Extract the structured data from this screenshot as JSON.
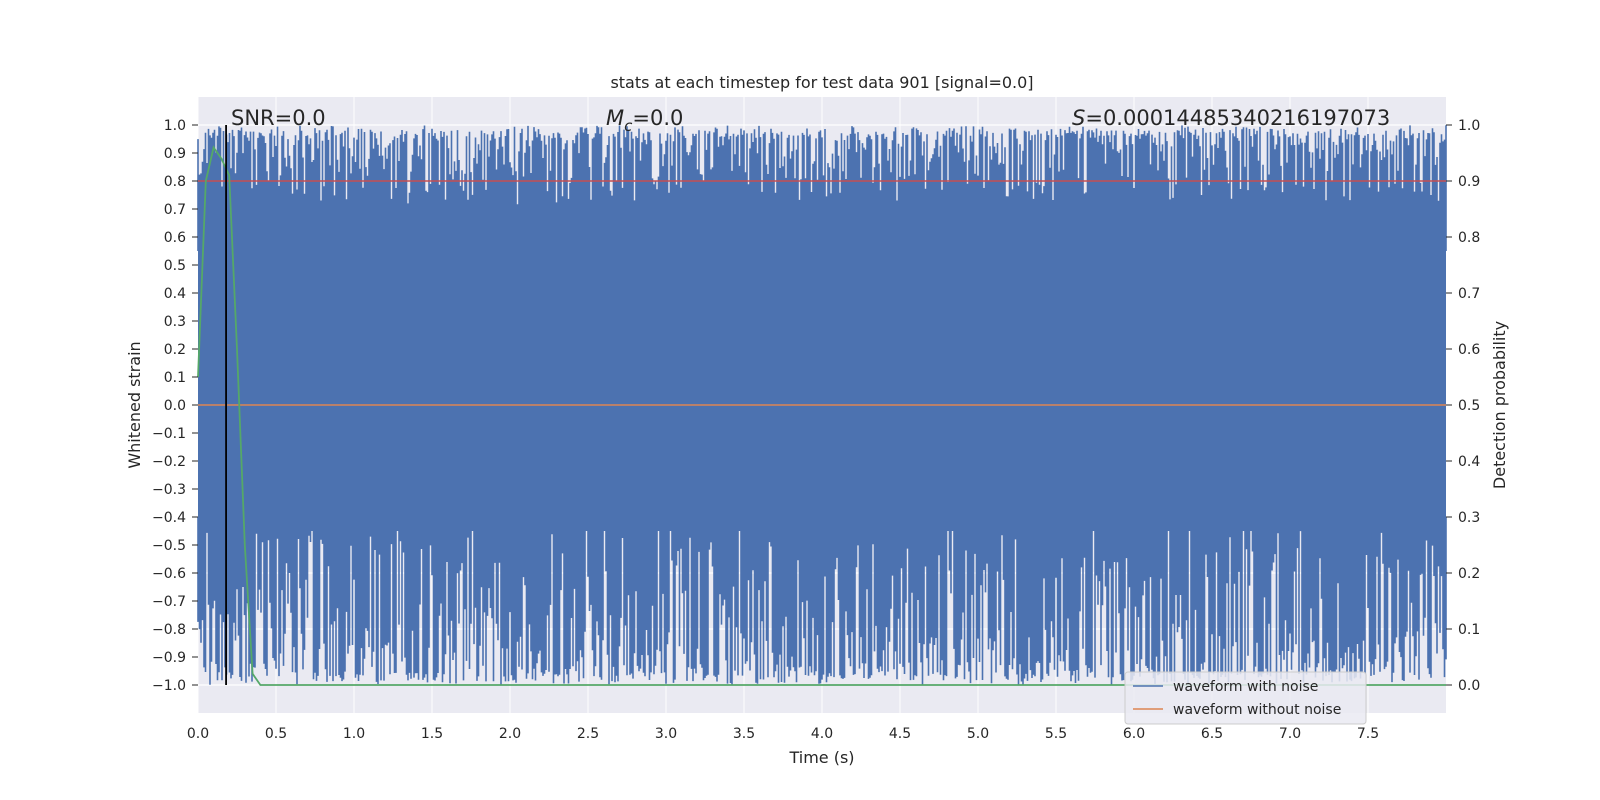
{
  "chart_data": {
    "type": "line",
    "title": "stats at each timestep for test data 901 [signal=0.0]",
    "xlabel": "Time (s)",
    "ylabel": "Whitened strain",
    "ylabel_right": "Detection probability",
    "xlim": [
      0.0,
      8.0
    ],
    "ylim": [
      -1.1,
      1.1
    ],
    "ylim_right": [
      -0.05,
      1.05
    ],
    "x_ticks": [
      "0.0",
      "0.5",
      "1.0",
      "1.5",
      "2.0",
      "2.5",
      "3.0",
      "3.5",
      "4.0",
      "4.5",
      "5.0",
      "5.5",
      "6.0",
      "6.5",
      "7.0",
      "7.5"
    ],
    "x_tick_values": [
      0.0,
      0.5,
      1.0,
      1.5,
      2.0,
      2.5,
      3.0,
      3.5,
      4.0,
      4.5,
      5.0,
      5.5,
      6.0,
      6.5,
      7.0,
      7.5
    ],
    "y_ticks": [
      "1.0",
      "0.9",
      "0.8",
      "0.7",
      "0.6",
      "0.5",
      "0.4",
      "0.3",
      "0.2",
      "0.1",
      "0.0",
      "−0.1",
      "−0.2",
      "−0.3",
      "−0.4",
      "−0.5",
      "−0.6",
      "−0.7",
      "−0.8",
      "−0.9",
      "−1.0"
    ],
    "y_tick_values": [
      1.0,
      0.9,
      0.8,
      0.7,
      0.6,
      0.5,
      0.4,
      0.3,
      0.2,
      0.1,
      0.0,
      -0.1,
      -0.2,
      -0.3,
      -0.4,
      -0.5,
      -0.6,
      -0.7,
      -0.8,
      -0.9,
      -1.0
    ],
    "y_right_ticks": [
      "1.0",
      "0.9",
      "0.8",
      "0.7",
      "0.6",
      "0.5",
      "0.4",
      "0.3",
      "0.2",
      "0.1",
      "0.0"
    ],
    "y_right_tick_values": [
      1.0,
      0.9,
      0.8,
      0.7,
      0.6,
      0.5,
      0.4,
      0.3,
      0.2,
      0.1,
      0.0
    ],
    "annotations": {
      "snr": "SNR=0.0",
      "mc_symbol": "M",
      "mc_sub": "c",
      "mc_value": "=0.0",
      "s_symbol": "S",
      "s_value": "=0.00014485340216197073"
    },
    "legend": {
      "placement": "lower-right",
      "entries": [
        {
          "label": "waveform with noise",
          "color": "#4c72b0"
        },
        {
          "label": "waveform without noise",
          "color": "#dd8452"
        }
      ]
    },
    "series": [
      {
        "name": "waveform with noise",
        "color": "#4c72b0",
        "description_range": [
          -1.0,
          1.0
        ]
      },
      {
        "name": "waveform without noise",
        "color": "#dd8452",
        "values_constant": 0.0
      },
      {
        "color": "#55a868",
        "axis": "right",
        "x": [
          0.0,
          0.05,
          0.1,
          0.15,
          0.2,
          0.25,
          0.3,
          0.35,
          0.4,
          0.5,
          8.0
        ],
        "values": [
          0.55,
          0.9,
          0.96,
          0.94,
          0.91,
          0.6,
          0.25,
          0.02,
          0.0,
          0.0,
          0.0
        ]
      },
      {
        "color": "#c44e52",
        "axis": "right",
        "values_constant": 0.9
      }
    ],
    "marker_x": 0.18,
    "colors": {
      "background": "#eaeaf2",
      "grid": "#ffffff",
      "marker": "#000000"
    },
    "grid": true
  }
}
